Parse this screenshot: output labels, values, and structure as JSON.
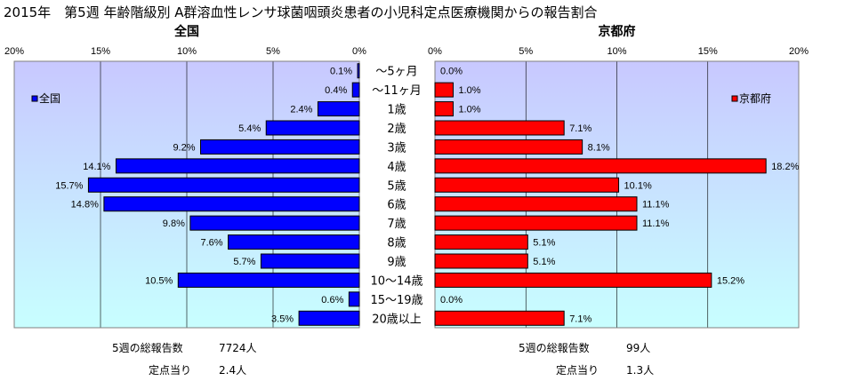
{
  "title": "2015年　第5週 年齢階級別 A群溶血性レンサ球菌咽頭炎患者の小児科定点医療機関からの報告割合",
  "colors": {
    "national": "#0000ff",
    "kyoto": "#ff0000",
    "plot_bg_top": "#c8c8ff",
    "plot_bg_bottom": "#c8ffff"
  },
  "chart_data": [
    {
      "type": "bar",
      "orientation": "horizontal-reversed",
      "title": "全国",
      "categories": [
        "～5ヶ月",
        "～11ヶ月",
        "1歳",
        "2歳",
        "3歳",
        "4歳",
        "5歳",
        "6歳",
        "7歳",
        "8歳",
        "9歳",
        "10～14歳",
        "15～19歳",
        "20歳以上"
      ],
      "series": [
        {
          "name": "全国",
          "values": [
            0.1,
            0.4,
            2.4,
            5.4,
            9.2,
            14.1,
            15.7,
            14.8,
            9.8,
            7.6,
            5.7,
            10.5,
            0.6,
            3.5
          ]
        }
      ],
      "data_labels": [
        "0.1%",
        "0.4%",
        "2.4%",
        "5.4%",
        "9.2%",
        "14.1%",
        "15.7%",
        "14.8%",
        "9.8%",
        "7.6%",
        "5.7%",
        "10.5%",
        "0.6%",
        "3.5%"
      ],
      "xlim": [
        20,
        0
      ],
      "ticks": [
        "20%",
        "15%",
        "10%",
        "5%",
        "0%"
      ],
      "legend": "top-left",
      "grid": true
    },
    {
      "type": "bar",
      "orientation": "horizontal",
      "title": "京都府",
      "categories": [
        "～5ヶ月",
        "～11ヶ月",
        "1歳",
        "2歳",
        "3歳",
        "4歳",
        "5歳",
        "6歳",
        "7歳",
        "8歳",
        "9歳",
        "10～14歳",
        "15～19歳",
        "20歳以上"
      ],
      "series": [
        {
          "name": "京都府",
          "values": [
            0.0,
            1.0,
            1.0,
            7.1,
            8.1,
            18.2,
            10.1,
            11.1,
            11.1,
            5.1,
            5.1,
            15.2,
            0.0,
            7.1
          ]
        }
      ],
      "data_labels": [
        "0.0%",
        "1.0%",
        "1.0%",
        "7.1%",
        "8.1%",
        "18.2%",
        "10.1%",
        "11.1%",
        "11.1%",
        "5.1%",
        "5.1%",
        "15.2%",
        "0.0%",
        "7.1%"
      ],
      "xlim": [
        0,
        20
      ],
      "ticks": [
        "0%",
        "5%",
        "10%",
        "15%",
        "20%"
      ],
      "legend": "top-right",
      "grid": true
    }
  ],
  "stats": {
    "national": {
      "total_label": "5週の総報告数",
      "total_value": "7724人",
      "per_label": "定点当り",
      "per_value": "2.4人"
    },
    "kyoto": {
      "total_label": "5週の総報告数",
      "total_value": "99人",
      "per_label": "定点当り",
      "per_value": "1.3人"
    }
  }
}
